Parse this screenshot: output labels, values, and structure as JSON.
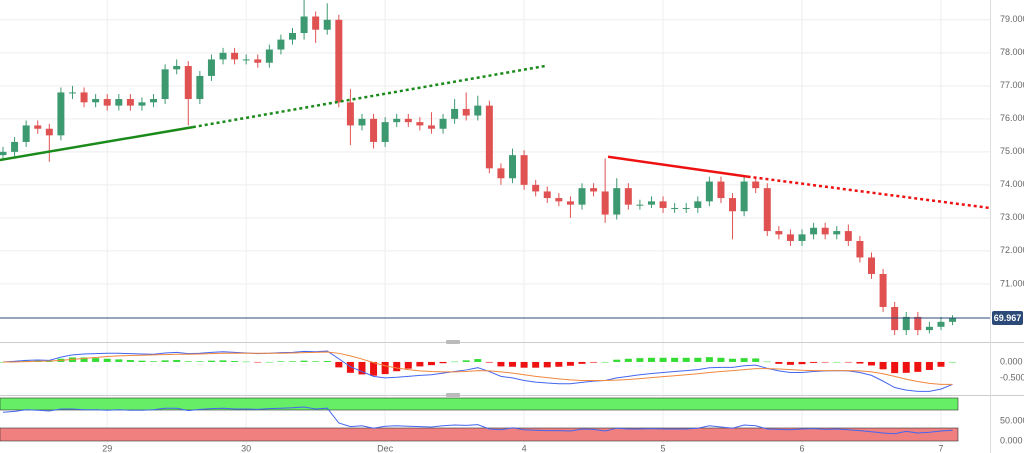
{
  "chart_data": [
    {
      "type": "candlestick",
      "categories": [
        null,
        null,
        null,
        null,
        null,
        null,
        null,
        null,
        null,
        "29",
        null,
        null,
        null,
        null,
        null,
        null,
        null,
        null,
        null,
        null,
        null,
        "30",
        null,
        null,
        null,
        null,
        null,
        null,
        null,
        null,
        null,
        null,
        null,
        "Dec",
        null,
        null,
        null,
        null,
        null,
        null,
        null,
        null,
        null,
        null,
        null,
        "4",
        null,
        null,
        null,
        null,
        null,
        null,
        null,
        null,
        null,
        null,
        null,
        "5",
        null,
        null,
        null,
        null,
        null,
        null,
        null,
        null,
        null,
        null,
        null,
        "6",
        null,
        null,
        null,
        null,
        null,
        null,
        null,
        null,
        null,
        null,
        null,
        "7",
        null
      ],
      "open": [
        74.9,
        75.0,
        75.3,
        75.8,
        75.7,
        75.5,
        76.8,
        76.8,
        76.5,
        76.6,
        76.4,
        76.6,
        76.4,
        76.5,
        76.6,
        77.5,
        77.6,
        76.6,
        77.3,
        77.8,
        78.0,
        77.8,
        77.8,
        77.7,
        78.1,
        78.4,
        78.6,
        79.1,
        78.7,
        79.0,
        76.5,
        75.8,
        76.0,
        75.3,
        75.9,
        76.0,
        75.9,
        75.8,
        75.7,
        76.0,
        76.3,
        76.1,
        76.4,
        74.5,
        74.2,
        74.9,
        74.0,
        73.8,
        73.6,
        73.5,
        73.4,
        73.9,
        73.8,
        73.1,
        73.9,
        73.4,
        73.4,
        73.5,
        73.3,
        73.3,
        73.3,
        73.5,
        74.1,
        73.6,
        73.2,
        74.1,
        73.9,
        72.6,
        72.5,
        72.3,
        72.5,
        72.7,
        72.5,
        72.6,
        72.3,
        71.8,
        71.3,
        70.3,
        69.6,
        70.0,
        69.6,
        69.7,
        69.85
      ],
      "high": [
        75.15,
        75.45,
        75.95,
        75.95,
        75.85,
        76.95,
        77.0,
        76.95,
        76.75,
        76.75,
        76.75,
        76.75,
        76.65,
        76.75,
        77.65,
        77.8,
        77.75,
        77.45,
        77.95,
        78.15,
        78.15,
        77.95,
        77.95,
        78.25,
        78.55,
        78.75,
        79.6,
        79.25,
        79.5,
        79.15,
        76.9,
        76.15,
        76.15,
        76.05,
        76.15,
        76.15,
        76.05,
        76.2,
        76.15,
        76.6,
        76.8,
        76.7,
        76.55,
        74.65,
        75.1,
        75.05,
        74.15,
        73.95,
        73.75,
        73.65,
        74.05,
        74.05,
        74.8,
        74.2,
        74.05,
        73.55,
        73.65,
        73.65,
        73.45,
        73.45,
        73.65,
        74.25,
        74.25,
        73.75,
        74.25,
        74.25,
        74.05,
        72.75,
        72.65,
        72.65,
        72.85,
        72.85,
        72.75,
        72.8,
        72.45,
        71.95,
        71.45,
        70.45,
        70.15,
        70.15,
        69.85,
        70.0,
        70.05
      ],
      "low": [
        74.75,
        74.85,
        75.15,
        75.55,
        74.7,
        75.35,
        76.6,
        76.35,
        76.35,
        76.25,
        76.25,
        76.25,
        76.25,
        76.35,
        76.45,
        77.35,
        75.8,
        76.45,
        77.15,
        77.65,
        77.65,
        77.65,
        77.55,
        77.55,
        77.95,
        78.25,
        78.4,
        78.3,
        78.55,
        76.35,
        75.2,
        75.65,
        75.1,
        75.15,
        75.75,
        75.75,
        75.65,
        75.55,
        75.55,
        75.85,
        75.95,
        75.95,
        74.35,
        74.0,
        74.05,
        73.85,
        73.65,
        73.45,
        73.35,
        73.0,
        73.25,
        73.65,
        72.85,
        72.95,
        73.25,
        73.25,
        73.3,
        73.15,
        73.15,
        73.15,
        73.15,
        73.35,
        73.45,
        72.35,
        73.05,
        73.75,
        72.45,
        72.35,
        72.15,
        72.15,
        72.35,
        72.35,
        72.35,
        72.15,
        71.65,
        71.15,
        70.15,
        69.45,
        69.45,
        69.45,
        69.5,
        69.6,
        69.75
      ],
      "close": [
        75.0,
        75.3,
        75.8,
        75.7,
        75.5,
        76.8,
        76.8,
        76.5,
        76.6,
        76.4,
        76.6,
        76.4,
        76.5,
        76.6,
        77.5,
        77.6,
        76.6,
        77.3,
        77.8,
        78.0,
        77.8,
        77.8,
        77.7,
        78.1,
        78.4,
        78.6,
        79.1,
        78.7,
        79.0,
        76.5,
        75.8,
        76.0,
        75.3,
        75.9,
        76.0,
        75.9,
        75.8,
        75.7,
        76.0,
        76.3,
        76.1,
        76.4,
        74.5,
        74.2,
        74.9,
        74.0,
        73.8,
        73.6,
        73.5,
        73.4,
        73.9,
        73.8,
        73.1,
        73.9,
        73.4,
        73.4,
        73.5,
        73.3,
        73.3,
        73.3,
        73.5,
        74.1,
        73.6,
        73.2,
        74.1,
        73.9,
        72.6,
        72.5,
        72.3,
        72.5,
        72.7,
        72.5,
        72.6,
        72.3,
        71.8,
        71.3,
        70.3,
        69.6,
        70.0,
        69.6,
        69.7,
        69.85,
        69.967
      ],
      "up_color": "#3d9970",
      "down_color": "#e05252",
      "ylim": [
        69.3,
        79.6
      ],
      "yticks": [
        {
          "value": 71,
          "label": "71.000"
        },
        {
          "value": 72,
          "label": "72.000"
        },
        {
          "value": 73,
          "label": "73.000"
        },
        {
          "value": 74,
          "label": "74.000"
        },
        {
          "value": 75,
          "label": "75.000"
        },
        {
          "value": 76,
          "label": "76.000"
        },
        {
          "value": 77,
          "label": "77.000"
        },
        {
          "value": 78,
          "label": "78.000"
        },
        {
          "value": 79,
          "label": "79.000"
        }
      ],
      "grid": true,
      "last_price": 69.967,
      "last_price_color": "#2c4a78",
      "trendlines": [
        {
          "color": "#1a8a1a",
          "dashed": false,
          "x": [
            -0.3,
            16.4
          ],
          "y": [
            74.75,
            75.75
          ]
        },
        {
          "color": "#1a8a1a",
          "dashed": true,
          "x": [
            16.4,
            46.8
          ],
          "y": [
            75.75,
            77.6
          ]
        },
        {
          "color": "#ee1111",
          "dashed": false,
          "x": [
            52.25,
            64.3
          ],
          "y": [
            74.85,
            74.25
          ]
        },
        {
          "color": "#ee1111",
          "dashed": true,
          "x": [
            64.3,
            85.2
          ],
          "y": [
            74.25,
            73.3
          ]
        }
      ]
    },
    {
      "type": "macd",
      "series": [
        {
          "color": "#4466ee",
          "values": [
            0.0,
            0.02,
            0.05,
            0.06,
            0.05,
            0.15,
            0.22,
            0.25,
            0.26,
            0.27,
            0.27,
            0.26,
            0.25,
            0.24,
            0.28,
            0.3,
            0.26,
            0.27,
            0.3,
            0.32,
            0.3,
            0.28,
            0.26,
            0.27,
            0.29,
            0.3,
            0.33,
            0.32,
            0.34,
            0.1,
            -0.15,
            -0.3,
            -0.45,
            -0.5,
            -0.48,
            -0.45,
            -0.42,
            -0.4,
            -0.35,
            -0.3,
            -0.25,
            -0.18,
            -0.3,
            -0.45,
            -0.5,
            -0.58,
            -0.63,
            -0.66,
            -0.68,
            -0.68,
            -0.64,
            -0.6,
            -0.58,
            -0.5,
            -0.45,
            -0.4,
            -0.36,
            -0.33,
            -0.3,
            -0.27,
            -0.24,
            -0.18,
            -0.17,
            -0.17,
            -0.12,
            -0.1,
            -0.2,
            -0.28,
            -0.33,
            -0.33,
            -0.3,
            -0.28,
            -0.27,
            -0.28,
            -0.33,
            -0.42,
            -0.6,
            -0.8,
            -0.88,
            -0.92,
            -0.92,
            -0.85,
            -0.7
          ]
        },
        {
          "color": "#f0883e",
          "values": [
            0.0,
            0.0,
            0.01,
            0.02,
            0.03,
            0.05,
            0.08,
            0.11,
            0.14,
            0.17,
            0.19,
            0.2,
            0.21,
            0.22,
            0.23,
            0.24,
            0.24,
            0.25,
            0.26,
            0.27,
            0.27,
            0.27,
            0.27,
            0.27,
            0.27,
            0.28,
            0.29,
            0.3,
            0.31,
            0.27,
            0.19,
            0.09,
            -0.02,
            -0.12,
            -0.19,
            -0.24,
            -0.28,
            -0.3,
            -0.31,
            -0.31,
            -0.3,
            -0.27,
            -0.28,
            -0.31,
            -0.35,
            -0.4,
            -0.45,
            -0.49,
            -0.53,
            -0.56,
            -0.58,
            -0.58,
            -0.58,
            -0.57,
            -0.55,
            -0.52,
            -0.49,
            -0.46,
            -0.43,
            -0.4,
            -0.37,
            -0.33,
            -0.3,
            -0.27,
            -0.24,
            -0.21,
            -0.21,
            -0.22,
            -0.24,
            -0.26,
            -0.27,
            -0.27,
            -0.27,
            -0.27,
            -0.28,
            -0.31,
            -0.37,
            -0.45,
            -0.54,
            -0.61,
            -0.67,
            -0.7,
            -0.7
          ]
        }
      ],
      "histogram": {
        "up_color": "#33dd33",
        "down_color": "#ee1111",
        "values": [
          0,
          0.02,
          0.04,
          0.04,
          0.02,
          0.1,
          0.14,
          0.14,
          0.12,
          0.1,
          0.08,
          0.06,
          0.04,
          0.02,
          0.05,
          0.06,
          0.02,
          0.02,
          0.04,
          0.05,
          0.03,
          0.01,
          -0.01,
          0,
          0.02,
          0.02,
          0.04,
          0.02,
          0.03,
          -0.17,
          -0.34,
          -0.39,
          -0.43,
          -0.38,
          -0.29,
          -0.21,
          -0.14,
          -0.1,
          -0.04,
          0.01,
          0.05,
          0.09,
          -0.02,
          -0.14,
          -0.15,
          -0.18,
          -0.18,
          -0.17,
          -0.15,
          -0.12,
          -0.06,
          -0.02,
          0,
          0.07,
          0.1,
          0.12,
          0.13,
          0.13,
          0.13,
          0.13,
          0.13,
          0.15,
          0.13,
          0.1,
          0.12,
          0.11,
          0.01,
          -0.06,
          -0.09,
          -0.07,
          -0.03,
          -0.01,
          0,
          -0.01,
          -0.05,
          -0.11,
          -0.23,
          -0.35,
          -0.34,
          -0.31,
          -0.25,
          -0.15,
          0
        ]
      },
      "ylim": [
        -0.94,
        0.53
      ],
      "yticks": [
        {
          "value": 0,
          "label": "0.000"
        },
        {
          "value": -0.5,
          "label": "-0.500"
        }
      ]
    },
    {
      "type": "line",
      "series": [
        {
          "color": "#4466ee",
          "values": [
            72,
            74,
            78,
            77,
            75,
            80,
            80,
            78,
            78,
            77,
            78,
            77,
            77,
            78,
            82,
            82,
            76,
            79,
            81,
            82,
            80,
            80,
            79,
            81,
            82,
            83,
            85,
            80,
            82,
            45,
            36,
            38,
            32,
            37,
            38,
            37,
            36,
            35,
            38,
            40,
            39,
            41,
            30,
            28,
            33,
            28,
            27,
            26,
            26,
            25,
            30,
            29,
            25,
            32,
            30,
            30,
            31,
            30,
            30,
            30,
            32,
            38,
            35,
            32,
            40,
            38,
            30,
            29,
            28,
            30,
            31,
            29,
            30,
            28,
            26,
            23,
            20,
            18,
            24,
            20,
            22,
            25,
            27
          ]
        }
      ],
      "bands": [
        {
          "from": 77.5,
          "to": 107.5,
          "color": "#66ee66"
        },
        {
          "from": 0,
          "to": 32.5,
          "color": "#f08080"
        }
      ],
      "ylim": [
        -10,
        107.5
      ],
      "yticks": [
        {
          "value": 50,
          "label": "50.000"
        },
        {
          "value": 0,
          "label": "0.000"
        }
      ]
    }
  ]
}
